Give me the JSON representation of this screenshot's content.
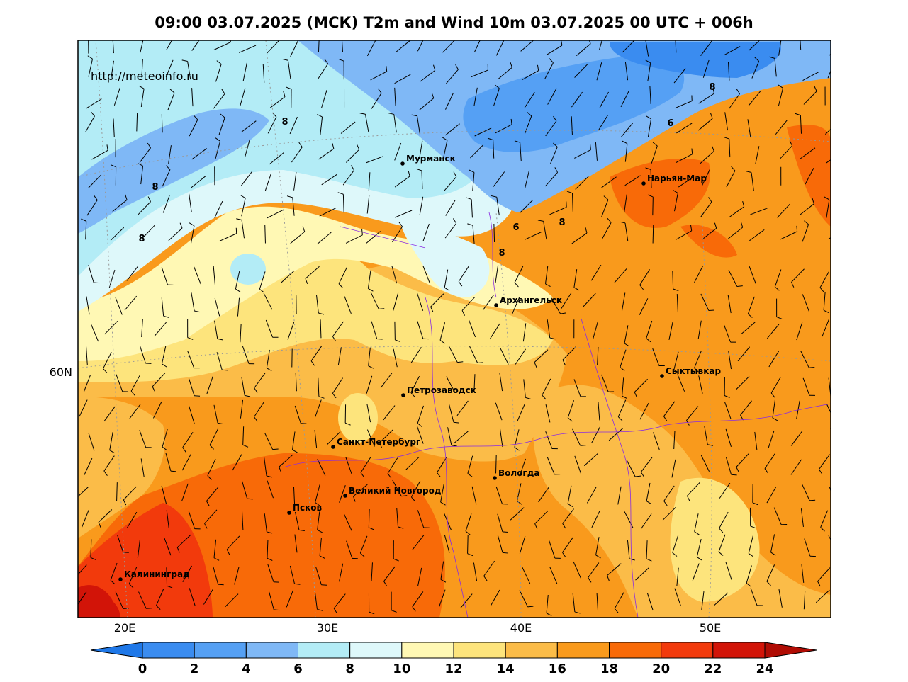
{
  "title": "09:00 03.07.2025 (МСК) T2m and Wind 10m 03.07.2025 00 UTC + 006h",
  "credit": "http://meteoinfo.ru",
  "axes": {
    "lon_labels": [
      "20E",
      "30E",
      "40E",
      "50E"
    ],
    "lat_labels": [
      "60N"
    ]
  },
  "cities": [
    {
      "name": "Мурманск",
      "lon": 33.1,
      "lat": 68.97
    },
    {
      "name": "Нарьян-Мар",
      "lon": 53.0,
      "lat": 67.64
    },
    {
      "name": "Архангельск",
      "lon": 40.5,
      "lat": 64.54
    },
    {
      "name": "Сыктывкар",
      "lon": 50.8,
      "lat": 61.67
    },
    {
      "name": "Петрозаводск",
      "lon": 34.36,
      "lat": 61.78
    },
    {
      "name": "Санкт-Петербург",
      "lon": 30.3,
      "lat": 59.94
    },
    {
      "name": "Вологда",
      "lon": 39.9,
      "lat": 59.22
    },
    {
      "name": "Великий Новгород",
      "lon": 31.27,
      "lat": 58.52
    },
    {
      "name": "Псков",
      "lon": 28.33,
      "lat": 57.82
    },
    {
      "name": "Калининград",
      "lon": 20.51,
      "lat": 54.71
    }
  ],
  "contour_labels": [
    "8",
    "8",
    "8",
    "8",
    "6",
    "6",
    "8",
    "8"
  ],
  "colorbar": {
    "ticks": [
      "0",
      "2",
      "4",
      "6",
      "8",
      "10",
      "12",
      "14",
      "16",
      "18",
      "20",
      "22",
      "24"
    ],
    "colors": [
      "#1f78e8",
      "#3a8cf0",
      "#55a0f4",
      "#7fb8f6",
      "#b3ecf6",
      "#def8fa",
      "#fff8b4",
      "#fde47c",
      "#fbbc48",
      "#f99a1c",
      "#f86a08",
      "#f23a0c",
      "#d21408",
      "#b00c04"
    ]
  }
}
